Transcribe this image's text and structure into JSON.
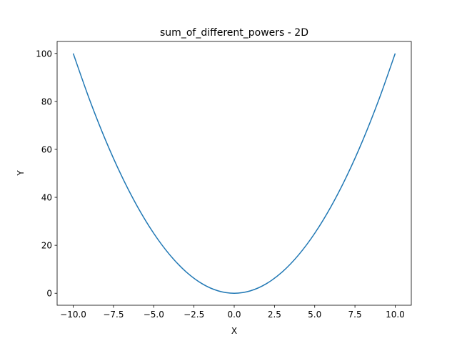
{
  "chart_data": {
    "type": "line",
    "title": "sum_of_different_powers - 2D",
    "xlabel": "X",
    "ylabel": "Y",
    "xlim": [
      -11.0,
      11.0
    ],
    "ylim": [
      -5.0,
      105.0
    ],
    "x_ticks": [
      -10.0,
      -7.5,
      -5.0,
      -2.5,
      0.0,
      2.5,
      5.0,
      7.5,
      10.0
    ],
    "x_tick_labels": [
      "−10.0",
      "−7.5",
      "−5.0",
      "−2.5",
      "0.0",
      "2.5",
      "5.0",
      "7.5",
      "10.0"
    ],
    "y_ticks": [
      0,
      20,
      40,
      60,
      80,
      100
    ],
    "y_tick_labels": [
      "0",
      "20",
      "40",
      "60",
      "80",
      "100"
    ],
    "grid": false,
    "colors": {
      "line": "#1f77b4",
      "axes": "#000000"
    },
    "series": [
      {
        "x": [
          -10.0,
          -9.0,
          -8.0,
          -7.0,
          -6.0,
          -5.0,
          -4.0,
          -3.0,
          -2.0,
          -1.0,
          0.0,
          1.0,
          2.0,
          3.0,
          4.0,
          5.0,
          6.0,
          7.0,
          8.0,
          9.0,
          10.0
        ],
        "values": [
          100,
          81,
          64,
          49,
          36,
          25,
          16,
          9,
          4,
          1,
          0,
          1,
          4,
          9,
          16,
          25,
          36,
          49,
          64,
          81,
          100
        ]
      }
    ]
  }
}
